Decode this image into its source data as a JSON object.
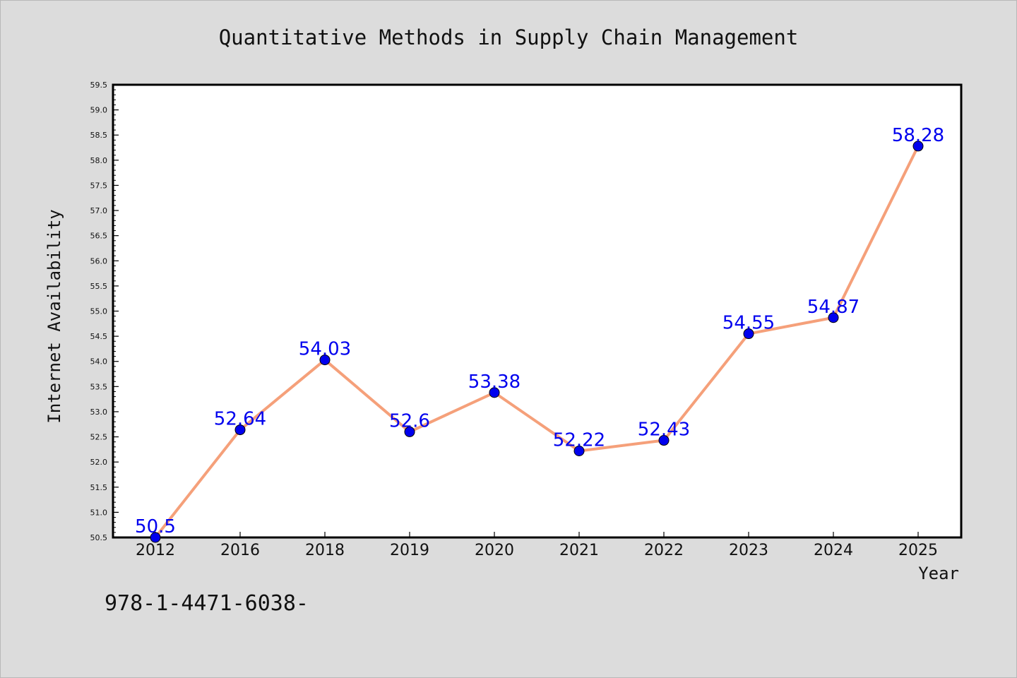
{
  "chart_data": {
    "type": "line",
    "title": "Quantitative Methods in Supply Chain Management",
    "xlabel": "Year",
    "ylabel": "Internet Availability",
    "categories": [
      "2012",
      "2016",
      "2018",
      "2019",
      "2020",
      "2021",
      "2022",
      "2023",
      "2024",
      "2025"
    ],
    "values": [
      50.5,
      52.64,
      54.03,
      52.6,
      53.38,
      52.22,
      52.43,
      54.55,
      54.87,
      58.28
    ],
    "data_labels": [
      "50.5",
      "52.64",
      "54.03",
      "52.6",
      "53.38",
      "52.22",
      "52.43",
      "54.55",
      "54.87",
      "58.28"
    ],
    "ylim": [
      50.5,
      59.5
    ],
    "yticks": [
      "50.5",
      "51.0",
      "51.5",
      "52.0",
      "52.5",
      "53.0",
      "53.5",
      "54.0",
      "54.5",
      "55.0",
      "55.5",
      "56.0",
      "56.5",
      "57.0",
      "57.5",
      "58.0",
      "58.5",
      "59.0",
      "59.5"
    ],
    "grid": false,
    "line_color": "#f5a07a",
    "marker_color": "#0000ee",
    "label_color": "#0000ee"
  },
  "footer_text": "978-1-4471-6038-"
}
